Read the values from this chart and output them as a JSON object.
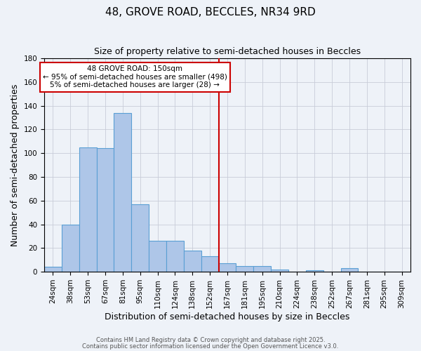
{
  "title": "48, GROVE ROAD, BECCLES, NR34 9RD",
  "subtitle": "Size of property relative to semi-detached houses in Beccles",
  "xlabel": "Distribution of semi-detached houses by size in Beccles",
  "ylabel": "Number of semi-detached properties",
  "bar_labels": [
    "24sqm",
    "38sqm",
    "53sqm",
    "67sqm",
    "81sqm",
    "95sqm",
    "110sqm",
    "124sqm",
    "138sqm",
    "152sqm",
    "167sqm",
    "181sqm",
    "195sqm",
    "210sqm",
    "224sqm",
    "238sqm",
    "252sqm",
    "267sqm",
    "281sqm",
    "295sqm",
    "309sqm"
  ],
  "bar_values": [
    4,
    40,
    105,
    104,
    134,
    57,
    26,
    26,
    18,
    13,
    7,
    5,
    5,
    2,
    0,
    1,
    0,
    3,
    0,
    0,
    0
  ],
  "bar_color": "#aec6e8",
  "bar_edge_color": "#5a9fd4",
  "vline_x_idx": 9,
  "vline_color": "#cc0000",
  "ylim": [
    0,
    180
  ],
  "yticks": [
    0,
    20,
    40,
    60,
    80,
    100,
    120,
    140,
    160,
    180
  ],
  "annotation_title": "48 GROVE ROAD: 150sqm",
  "annotation_line1": "← 95% of semi-detached houses are smaller (498)",
  "annotation_line2": "5% of semi-detached houses are larger (28) →",
  "annotation_box_color": "#ffffff",
  "annotation_box_edge": "#cc0000",
  "footer1": "Contains HM Land Registry data © Crown copyright and database right 2025.",
  "footer2": "Contains public sector information licensed under the Open Government Licence v3.0.",
  "bg_color": "#eef2f8",
  "title_fontsize": 11,
  "subtitle_fontsize": 9,
  "axis_label_fontsize": 9,
  "tick_fontsize": 7.5
}
